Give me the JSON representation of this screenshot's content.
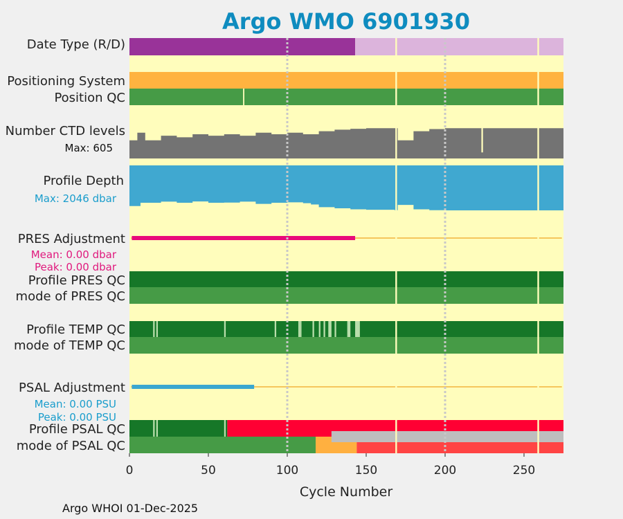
{
  "title": "Argo WMO 6901930",
  "footer": "Argo WHOI 01-Dec-2025",
  "chart_data": {
    "type": "table",
    "title": "Argo WMO 6901930",
    "xlabel": "Cycle Number",
    "xlim": [
      0,
      275
    ],
    "xticks": [
      0,
      50,
      100,
      150,
      200,
      250
    ],
    "dotted_gridlines_at": [
      100,
      200
    ],
    "cycle_gaps": [
      169,
      259
    ],
    "colors": {
      "background": "#fffdbc",
      "date_realtime": "#993399",
      "date_delayed": "#dcb4dc",
      "qc_good": "#469b46",
      "profile_qc_A": "#167728",
      "profile_qc_light": "#b9deab",
      "positioning": "#ffb340",
      "ctd_levels": "#737373",
      "profile_depth": "#40a8d0",
      "pres_adjustment": "#e80a7a",
      "psal_adjustment": "#3aa7d0",
      "adjustment_line": "#f2b33d",
      "psal_profile_bad": "#ff0033",
      "psal_mode_orange": "#ffb040",
      "psal_mode_red": "#ff4444",
      "psal_mode_grey": "#bebebe"
    },
    "rows": {
      "date_type": {
        "label": "Date Type (R/D)",
        "segments": [
          {
            "from": 0,
            "to": 143,
            "value": "D",
            "color": "#993399"
          },
          {
            "from": 143,
            "to": 275,
            "value": "R",
            "color": "#dcb4dc"
          }
        ]
      },
      "positioning_system": {
        "label": "Positioning System",
        "value": "GPS",
        "color": "#ffb340"
      },
      "position_qc": {
        "label": "Position QC",
        "value": "good",
        "gaps": [
          72
        ]
      },
      "ctd_levels": {
        "label": "Number CTD levels",
        "max_label": "Max: 605",
        "max": 605,
        "min_value": 500,
        "series": [
          {
            "x": 0,
            "y": 560
          },
          {
            "x": 5,
            "y": 585
          },
          {
            "x": 10,
            "y": 560
          },
          {
            "x": 20,
            "y": 575
          },
          {
            "x": 30,
            "y": 570
          },
          {
            "x": 40,
            "y": 580
          },
          {
            "x": 50,
            "y": 575
          },
          {
            "x": 60,
            "y": 580
          },
          {
            "x": 70,
            "y": 575
          },
          {
            "x": 80,
            "y": 585
          },
          {
            "x": 90,
            "y": 580
          },
          {
            "x": 100,
            "y": 585
          },
          {
            "x": 110,
            "y": 580
          },
          {
            "x": 120,
            "y": 590
          },
          {
            "x": 130,
            "y": 595
          },
          {
            "x": 140,
            "y": 598
          },
          {
            "x": 150,
            "y": 600
          },
          {
            "x": 168,
            "y": 600
          },
          {
            "x": 170,
            "y": 560
          },
          {
            "x": 180,
            "y": 590
          },
          {
            "x": 190,
            "y": 597
          },
          {
            "x": 200,
            "y": 600
          },
          {
            "x": 222,
            "y": 600
          },
          {
            "x": 223,
            "y": 520
          },
          {
            "x": 224,
            "y": 600
          },
          {
            "x": 240,
            "y": 600
          },
          {
            "x": 275,
            "y": 600
          }
        ]
      },
      "profile_depth": {
        "label": "Profile Depth",
        "max_label": "Max: 2046 dbar",
        "max": 2046,
        "series": [
          {
            "x": 0,
            "y": 1850
          },
          {
            "x": 7,
            "y": 1700
          },
          {
            "x": 20,
            "y": 1650
          },
          {
            "x": 30,
            "y": 1700
          },
          {
            "x": 40,
            "y": 1640
          },
          {
            "x": 50,
            "y": 1700
          },
          {
            "x": 60,
            "y": 1690
          },
          {
            "x": 70,
            "y": 1650
          },
          {
            "x": 80,
            "y": 1750
          },
          {
            "x": 90,
            "y": 1700
          },
          {
            "x": 100,
            "y": 1680
          },
          {
            "x": 110,
            "y": 1720
          },
          {
            "x": 115,
            "y": 1780
          },
          {
            "x": 120,
            "y": 1900
          },
          {
            "x": 130,
            "y": 1950
          },
          {
            "x": 140,
            "y": 2000
          },
          {
            "x": 150,
            "y": 2020
          },
          {
            "x": 168,
            "y": 2040
          },
          {
            "x": 170,
            "y": 1800
          },
          {
            "x": 180,
            "y": 2000
          },
          {
            "x": 190,
            "y": 2040
          },
          {
            "x": 200,
            "y": 2046
          },
          {
            "x": 275,
            "y": 2046
          }
        ]
      },
      "pres_adjustment": {
        "label": "PRES Adjustment",
        "mean_label": "Mean: 0.00 dbar",
        "peak_label": "Peak: 0.00 dbar",
        "adjusted_to_cycle": 143
      },
      "profile_pres_qc": {
        "label": "Profile PRES QC",
        "value": "A"
      },
      "mode_pres_qc": {
        "label": "mode of PRES QC",
        "value": "1"
      },
      "profile_temp_qc": {
        "label": "Profile TEMP QC",
        "value": "A",
        "exceptions": [
          {
            "from": 15,
            "to": 16,
            "value": "B"
          },
          {
            "from": 17,
            "to": 18,
            "value": "B"
          },
          {
            "from": 60,
            "to": 61,
            "value": "B"
          },
          {
            "from": 92,
            "to": 93,
            "value": "B"
          },
          {
            "from": 107,
            "to": 108,
            "value": "B"
          },
          {
            "from": 108,
            "to": 109,
            "value": "B"
          },
          {
            "from": 116,
            "to": 117,
            "value": "B"
          },
          {
            "from": 120,
            "to": 121,
            "value": "B"
          },
          {
            "from": 123,
            "to": 124,
            "value": "B"
          },
          {
            "from": 126,
            "to": 128,
            "value": "B"
          },
          {
            "from": 130,
            "to": 131,
            "value": "B"
          },
          {
            "from": 138,
            "to": 140,
            "value": "B"
          },
          {
            "from": 143,
            "to": 146,
            "value": "B"
          }
        ]
      },
      "mode_temp_qc": {
        "label": "mode of TEMP QC",
        "value": "1"
      },
      "psal_adjustment": {
        "label": "PSAL Adjustment",
        "mean_label": "Mean: 0.00 PSU",
        "peak_label": "Peak: 0.00 PSU",
        "adjusted_to_cycle": 79
      },
      "profile_psal_qc": {
        "label": "Profile PSAL QC",
        "segments": [
          {
            "from": 0,
            "to": 62,
            "value": "A"
          },
          {
            "from": 62,
            "to": 275,
            "value": "F"
          }
        ],
        "exceptions": [
          {
            "from": 15,
            "to": 16,
            "value": "B"
          },
          {
            "from": 17,
            "to": 18,
            "value": "B"
          },
          {
            "from": 60,
            "to": 61,
            "value": "B"
          }
        ]
      },
      "mode_psal_qc": {
        "label": "mode of PSAL QC",
        "segments": [
          {
            "from": 0,
            "to": 118,
            "value": "1"
          },
          {
            "from": 118,
            "to": 144,
            "value": "3"
          },
          {
            "from": 144,
            "to": 275,
            "value": "4"
          }
        ],
        "grey_overlay": {
          "from": 128,
          "to": 275
        }
      }
    }
  }
}
